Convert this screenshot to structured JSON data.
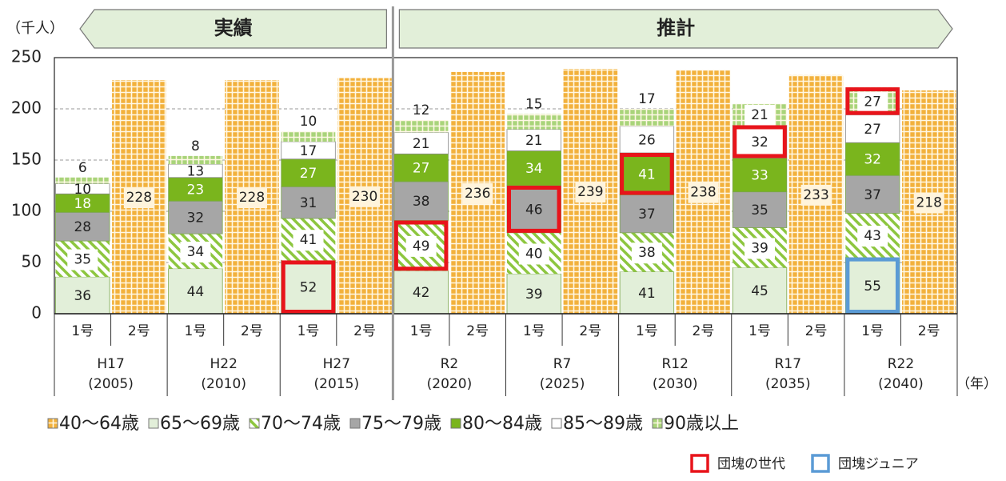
{
  "chart_data": {
    "type": "bar",
    "stacked": true,
    "ylabel": "（千人）",
    "xlabel": "（年）",
    "ylim": [
      0,
      250
    ],
    "yticks": [
      0,
      50,
      100,
      150,
      200,
      250
    ],
    "grid": true,
    "categories": [
      "1号",
      "2号",
      "1号",
      "2号",
      "1号",
      "2号",
      "1号",
      "2号",
      "1号",
      "2号",
      "1号",
      "2号",
      "1号",
      "2号",
      "1号",
      "2号"
    ],
    "groups": [
      {
        "name": "H17",
        "year": "(2005)"
      },
      {
        "name": "H22",
        "year": "(2010)"
      },
      {
        "name": "H27",
        "year": "(2015)"
      },
      {
        "name": "R2",
        "year": "(2020)"
      },
      {
        "name": "R7",
        "year": "(2025)"
      },
      {
        "name": "R12",
        "year": "(2030)"
      },
      {
        "name": "R17",
        "year": "(2035)"
      },
      {
        "name": "R22",
        "year": "(2040)"
      }
    ],
    "periods": [
      {
        "label": "実績",
        "from": "H17",
        "to": "H27"
      },
      {
        "label": "推計",
        "from": "R2",
        "to": "R22"
      }
    ],
    "series": [
      {
        "name": "40～64歳",
        "color": "#f2b13c",
        "pattern": "grid",
        "values": [
          null,
          228,
          null,
          228,
          null,
          230,
          null,
          236,
          null,
          239,
          null,
          238,
          null,
          233,
          null,
          218
        ]
      },
      {
        "name": "65～69歳",
        "color": "#e2efd9",
        "pattern": "solid",
        "values": [
          36,
          null,
          44,
          null,
          52,
          null,
          42,
          null,
          39,
          null,
          41,
          null,
          45,
          null,
          55,
          null
        ]
      },
      {
        "name": "70～74歳",
        "color": "#8dc63f",
        "pattern": "stripes",
        "values": [
          35,
          null,
          34,
          null,
          41,
          null,
          49,
          null,
          40,
          null,
          38,
          null,
          39,
          null,
          43,
          null
        ]
      },
      {
        "name": "75～79歳",
        "color": "#a6a6a6",
        "pattern": "solid",
        "values": [
          28,
          null,
          32,
          null,
          31,
          null,
          38,
          null,
          46,
          null,
          37,
          null,
          35,
          null,
          37,
          null
        ]
      },
      {
        "name": "80～84歳",
        "color": "#7ab51d",
        "pattern": "solid",
        "label_color": "#ffffff",
        "values": [
          18,
          null,
          23,
          null,
          27,
          null,
          27,
          null,
          34,
          null,
          41,
          null,
          33,
          null,
          32,
          null
        ]
      },
      {
        "name": "85～89歳",
        "color": "#ffffff",
        "pattern": "solid",
        "values": [
          10,
          null,
          13,
          null,
          17,
          null,
          21,
          null,
          21,
          null,
          26,
          null,
          32,
          null,
          27,
          null
        ]
      },
      {
        "name": "90歳以上",
        "color": "#a9d47a",
        "pattern": "grid",
        "values": [
          6,
          null,
          8,
          null,
          10,
          null,
          12,
          null,
          15,
          null,
          17,
          null,
          21,
          null,
          27,
          null
        ]
      }
    ],
    "highlights": [
      {
        "name": "団塊の世代",
        "color": "#e8141b",
        "cells": [
          {
            "group": "H27",
            "series": "65～69歳"
          },
          {
            "group": "R2",
            "series": "70～74歳"
          },
          {
            "group": "R7",
            "series": "75～79歳"
          },
          {
            "group": "R12",
            "series": "80～84歳"
          },
          {
            "group": "R17",
            "series": "85～89歳"
          },
          {
            "group": "R22",
            "series": "90歳以上"
          }
        ]
      },
      {
        "name": "団塊ジュニア",
        "color": "#5b9bd5",
        "cells": [
          {
            "group": "R22",
            "series": "65～69歳"
          }
        ]
      }
    ]
  }
}
